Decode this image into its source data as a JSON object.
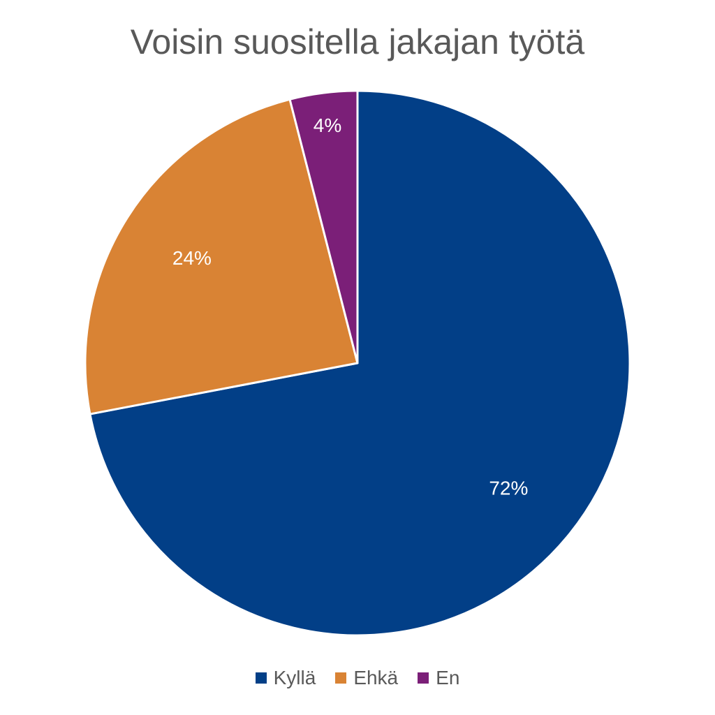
{
  "chart_data": {
    "type": "pie",
    "title": "Voisin suositella jakajan työtä",
    "categories": [
      "Kyllä",
      "Ehkä",
      "En"
    ],
    "values": [
      72,
      24,
      4
    ],
    "labels": [
      "72%",
      "24%",
      "4%"
    ],
    "colors": [
      "#023F87",
      "#D98334",
      "#7B1F78"
    ],
    "legend_position": "bottom",
    "start_angle": "12 o'clock",
    "direction": "clockwise"
  }
}
